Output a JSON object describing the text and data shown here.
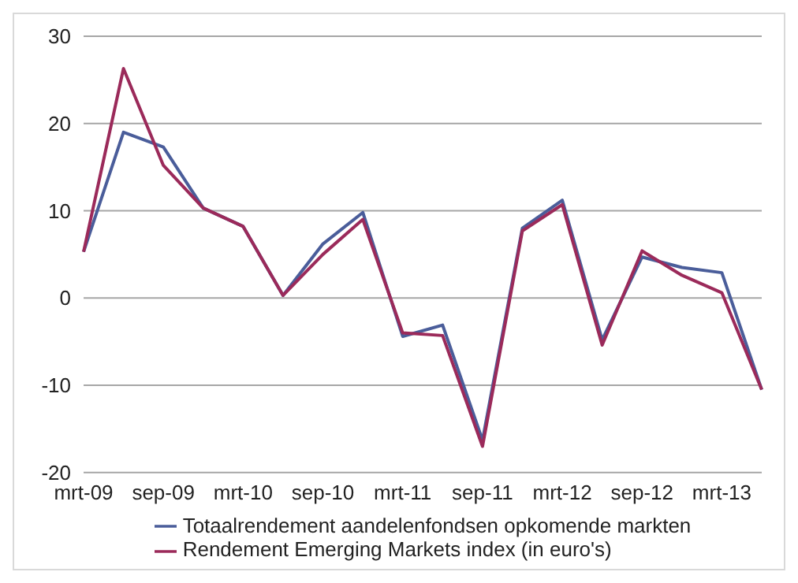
{
  "chart_data": {
    "type": "line",
    "categories": [
      "mrt-09",
      null,
      "sep-09",
      null,
      "mrt-10",
      null,
      "sep-10",
      null,
      "mrt-11",
      null,
      "sep-11",
      null,
      "mrt-12",
      null,
      "sep-12",
      null,
      "mrt-13",
      null
    ],
    "series": [
      {
        "name": "Totaalrendement aandelenfondsen opkomende markten",
        "color": "#4a5d9a",
        "values": [
          5.3,
          19,
          17.3,
          10.3,
          8.2,
          0.3,
          6.2,
          9.8,
          -4.4,
          -3.1,
          -16.3,
          8,
          11.2,
          -4.8,
          4.7,
          3.5,
          2.9,
          -10.5
        ]
      },
      {
        "name": "Rendement Emerging Markets index (in euro's)",
        "color": "#9b2a5a",
        "values": [
          5.3,
          26.3,
          15.2,
          10.3,
          8.2,
          0.3,
          5,
          9,
          -4,
          -4.3,
          -17,
          7.7,
          10.7,
          -5.4,
          5.4,
          2.6,
          0.6,
          -10.5
        ]
      }
    ],
    "ylim": [
      -20,
      30
    ],
    "yticks": [
      -20,
      -10,
      0,
      10,
      20,
      30
    ],
    "grid": "y",
    "legend": "bottom",
    "marker": "none",
    "line_style": "solid"
  }
}
